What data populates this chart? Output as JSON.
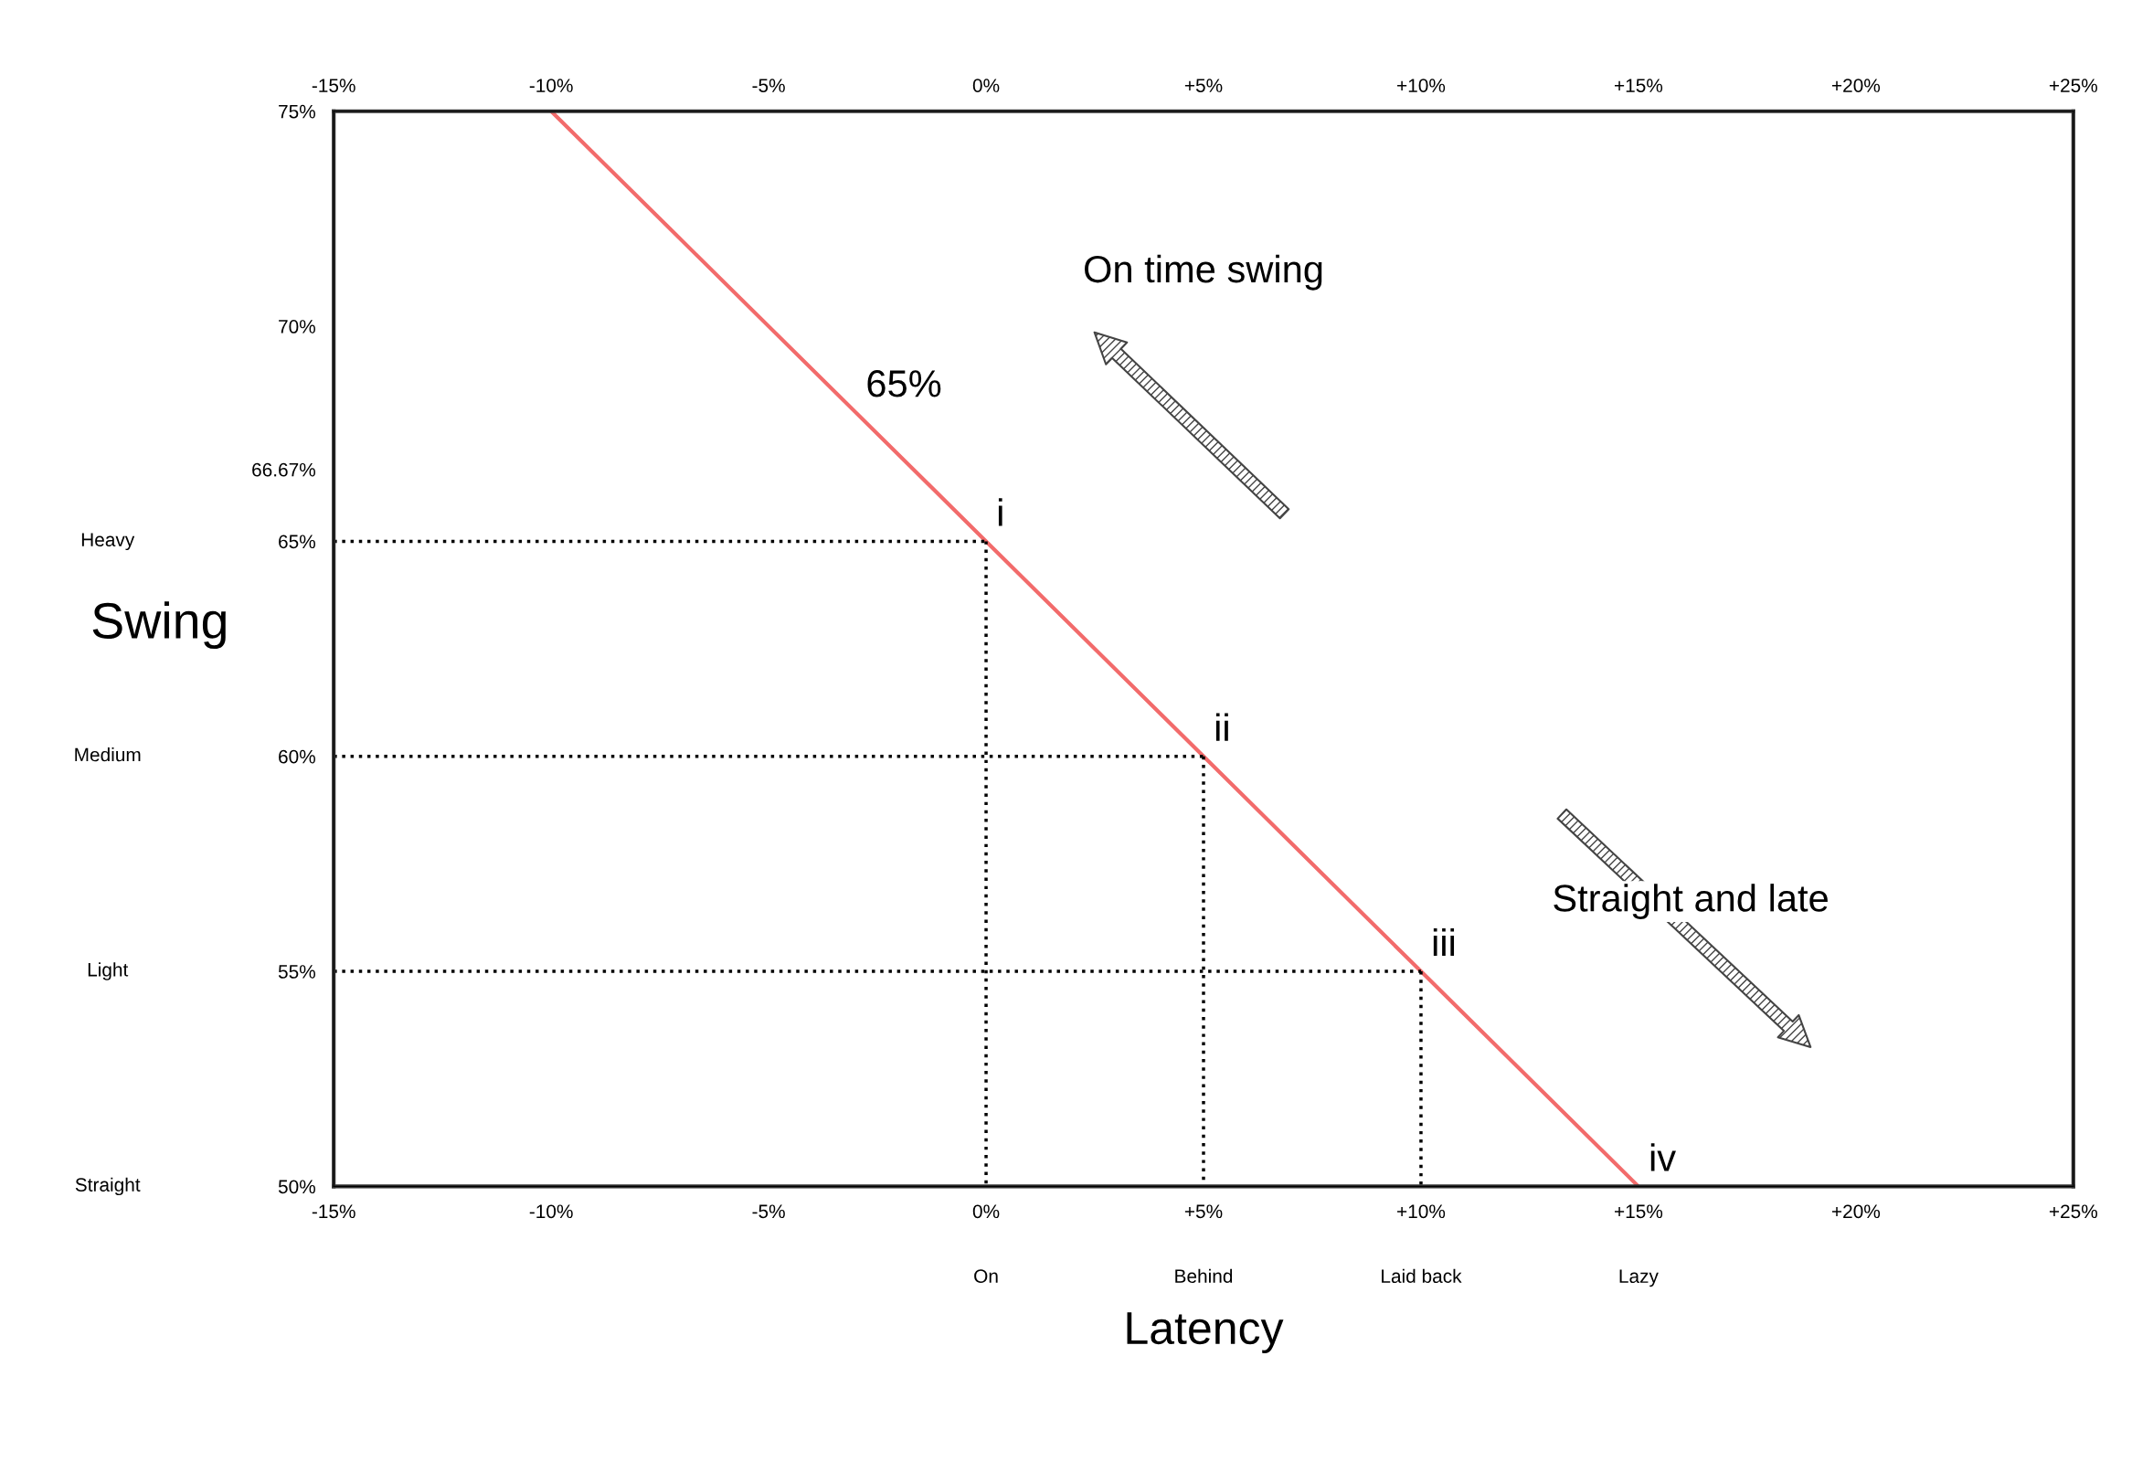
{
  "chart_data": {
    "type": "line",
    "xlabel": "Latency",
    "ylabel": "Swing",
    "xlim": [
      -15,
      25
    ],
    "ylim": [
      50,
      75
    ],
    "xticks": [
      {
        "value": -15,
        "label": "-15%"
      },
      {
        "value": -10,
        "label": "-10%"
      },
      {
        "value": -5,
        "label": "-5%"
      },
      {
        "value": 0,
        "label": "0%"
      },
      {
        "value": 5,
        "label": "+5%"
      },
      {
        "value": 10,
        "label": "+10%"
      },
      {
        "value": 15,
        "label": "+15%"
      },
      {
        "value": 20,
        "label": "+20%"
      },
      {
        "value": 25,
        "label": "+25%"
      }
    ],
    "x2lim": [
      -15,
      25
    ],
    "x2ticks": [
      {
        "value": -15,
        "label": "-15%"
      },
      {
        "value": -10,
        "label": "-10%"
      },
      {
        "value": -5,
        "label": "-5%"
      },
      {
        "value": 0,
        "label": "0%"
      },
      {
        "value": 5,
        "label": "+5%"
      },
      {
        "value": 10,
        "label": "+10%"
      },
      {
        "value": 15,
        "label": "+15%"
      },
      {
        "value": 20,
        "label": "+20%"
      },
      {
        "value": 25,
        "label": "+25%"
      }
    ],
    "yticks": [
      {
        "value": 50,
        "label": "50%"
      },
      {
        "value": 55,
        "label": "55%"
      },
      {
        "value": 60,
        "label": "60%"
      },
      {
        "value": 65,
        "label": "65%"
      },
      {
        "value": 66.67,
        "label": "66.67%"
      },
      {
        "value": 70,
        "label": "70%"
      },
      {
        "value": 75,
        "label": "75%"
      }
    ],
    "grid": false,
    "marker": "none",
    "series": [
      {
        "color": "#f26b6b",
        "line_style": "solid",
        "x": [
          -10,
          0,
          5,
          10,
          15
        ],
        "values": [
          75,
          65,
          60,
          55,
          50
        ]
      },
      {
        "color": "#000000",
        "line_style": "dotted",
        "x": [
          -15,
          0
        ],
        "values": [
          65,
          65
        ]
      },
      {
        "color": "#000000",
        "line_style": "dotted",
        "x": [
          -15,
          5
        ],
        "values": [
          60,
          60
        ]
      },
      {
        "color": "#000000",
        "line_style": "dotted",
        "x": [
          -15,
          10
        ],
        "values": [
          55,
          55
        ]
      },
      {
        "color": "#000000",
        "line_style": "dotted",
        "x": [
          0,
          0
        ],
        "values": [
          65,
          50
        ]
      },
      {
        "color": "#000000",
        "line_style": "dotted",
        "x": [
          5,
          5
        ],
        "values": [
          60,
          50
        ]
      },
      {
        "color": "#000000",
        "line_style": "dotted",
        "x": [
          10,
          10
        ],
        "values": [
          55,
          50
        ]
      }
    ],
    "annotations": [
      {
        "text": "i",
        "x": 0,
        "y": 65
      },
      {
        "text": "ii",
        "x": 5,
        "y": 60
      },
      {
        "text": "iii",
        "x": 10,
        "y": 55
      },
      {
        "text": "iv",
        "x": 15,
        "y": 50
      },
      {
        "text": "65%",
        "x": -3,
        "y": 68
      },
      "On time swing",
      "Straight and late",
      "On",
      "Behind",
      "Laid back",
      "Lazy",
      "Heavy",
      "Medium",
      "Light",
      "Straight"
    ]
  }
}
